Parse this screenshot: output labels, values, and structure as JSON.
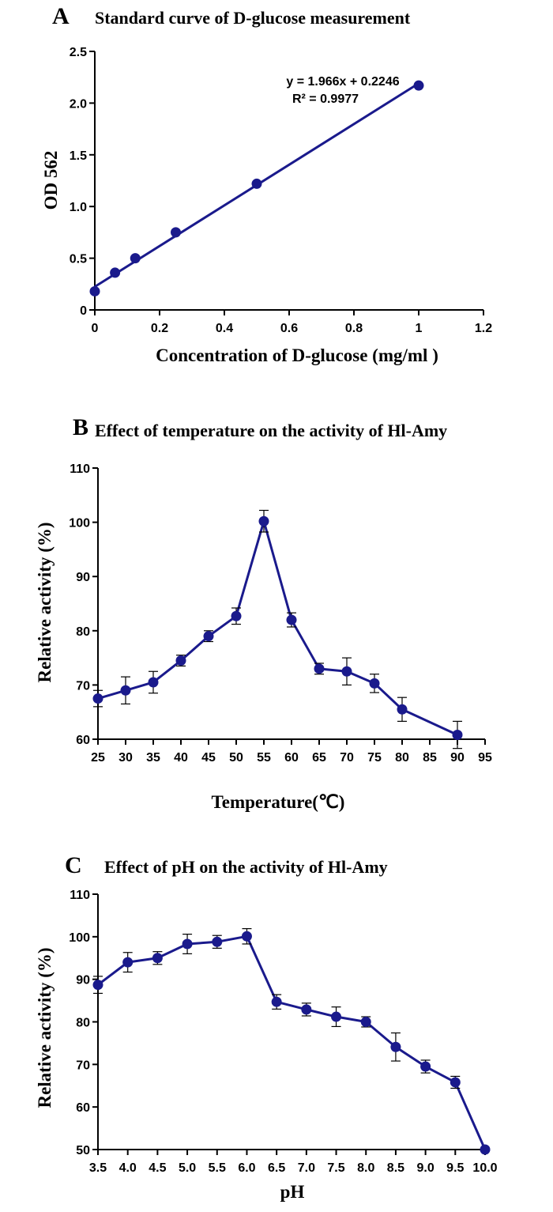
{
  "colors": {
    "series": "#1a1a8c",
    "axis": "#000000"
  },
  "chart_data": [
    {
      "panel": "A",
      "type": "scatter",
      "title": "Standard curve of D-glucose measurement",
      "xlabel": "Concentration of D-glucose (mg/ml )",
      "ylabel": "OD 562",
      "xlim": [
        0,
        1.2
      ],
      "ylim": [
        0,
        2.5
      ],
      "xticks": [
        0,
        0.2,
        0.4,
        0.6,
        0.8,
        1,
        1.2
      ],
      "xtick_labels": [
        "0",
        "0.2",
        "0.4",
        "0.6",
        "0.8",
        "1",
        "1.2"
      ],
      "yticks": [
        0,
        0.5,
        1,
        1.5,
        2,
        2.5
      ],
      "ytick_labels": [
        "0",
        "0.5",
        "1.0",
        "1.5",
        "2.0",
        "2.5"
      ],
      "x": [
        0,
        0.0625,
        0.125,
        0.25,
        0.5,
        1
      ],
      "y": [
        0.18,
        0.36,
        0.5,
        0.75,
        1.22,
        2.17
      ],
      "trendline": {
        "slope": 1.966,
        "intercept": 0.2246,
        "x_range": [
          0,
          1
        ]
      },
      "equation": "y = 1.966x + 0.2246",
      "r_squared": "R² = 0.9977",
      "grid": false
    },
    {
      "panel": "B",
      "type": "line",
      "title": "Effect of temperature on the activity of Hl-Amy",
      "xlabel": "Temperature(℃)",
      "ylabel": "Relative activity (%)",
      "xlim": [
        25,
        95
      ],
      "ylim": [
        60,
        110
      ],
      "xticks": [
        25,
        30,
        35,
        40,
        45,
        50,
        55,
        60,
        65,
        70,
        75,
        80,
        85,
        90,
        95
      ],
      "xtick_labels": [
        "25",
        "30",
        "35",
        "40",
        "45",
        "50",
        "55",
        "60",
        "65",
        "70",
        "75",
        "80",
        "85",
        "90",
        "95"
      ],
      "yticks": [
        60,
        70,
        80,
        90,
        100,
        110
      ],
      "ytick_labels": [
        "60",
        "70",
        "80",
        "90",
        "100",
        "110"
      ],
      "x": [
        25,
        30,
        35,
        40,
        45,
        50,
        55,
        60,
        65,
        70,
        75,
        80,
        90
      ],
      "y": [
        67.5,
        69,
        70.5,
        74.5,
        79,
        82.7,
        100.2,
        82,
        73,
        72.5,
        70.3,
        65.5,
        60.8
      ],
      "error": [
        1.5,
        2.5,
        2,
        1,
        1,
        1.5,
        2,
        1.3,
        1,
        2.5,
        1.7,
        2.2,
        2.5
      ],
      "grid": false
    },
    {
      "panel": "C",
      "type": "line",
      "title": "Effect of pH on the activity of Hl-Amy",
      "xlabel": "pH",
      "ylabel": "Relative activity (%)",
      "xlim": [
        3.5,
        10
      ],
      "ylim": [
        50,
        110
      ],
      "xticks": [
        3.5,
        4,
        4.5,
        5,
        5.5,
        6,
        6.5,
        7,
        7.5,
        8,
        8.5,
        9,
        9.5,
        10
      ],
      "xtick_labels": [
        "3.5",
        "4.0",
        "4.5",
        "5.0",
        "5.5",
        "6.0",
        "6.5",
        "7.0",
        "7.5",
        "8.0",
        "8.5",
        "9.0",
        "9.5",
        "10.0"
      ],
      "yticks": [
        50,
        60,
        70,
        80,
        90,
        100,
        110
      ],
      "ytick_labels": [
        "50",
        "60",
        "70",
        "80",
        "90",
        "100",
        "110"
      ],
      "x": [
        3.5,
        4,
        4.5,
        5,
        5.5,
        6,
        6.5,
        7,
        7.5,
        8,
        8.5,
        9,
        9.5,
        10
      ],
      "y": [
        88.7,
        94,
        95,
        98.3,
        98.8,
        100.1,
        84.7,
        82.9,
        81.2,
        80,
        74.1,
        69.5,
        65.8,
        50
      ],
      "error": [
        2,
        2.3,
        1.5,
        2.3,
        1.5,
        1.8,
        1.7,
        1.5,
        2.3,
        1.2,
        3.3,
        1.5,
        1.4,
        null
      ],
      "grid": false
    }
  ]
}
